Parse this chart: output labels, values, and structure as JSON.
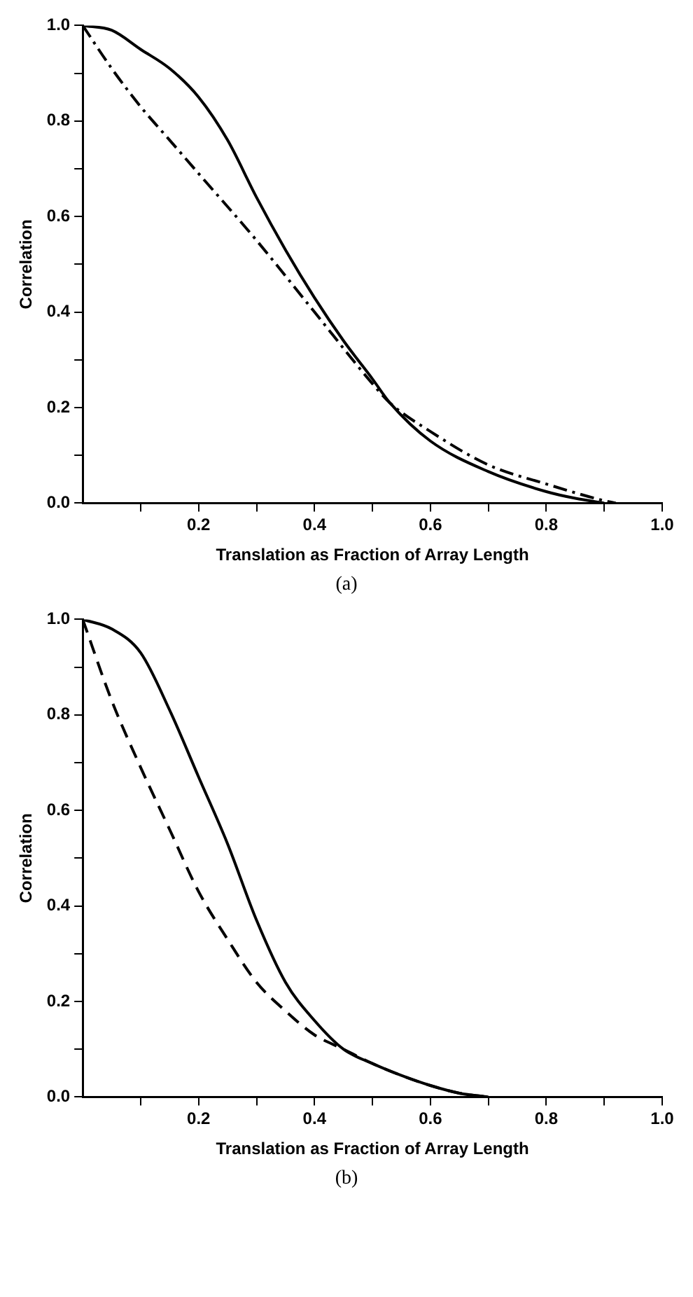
{
  "chart_data": [
    {
      "type": "line",
      "xlabel": "Translation as Fraction of Array Length",
      "ylabel": "Correlation",
      "annotations": [
        "(a)"
      ],
      "marker": "none",
      "legend": false,
      "grid": false,
      "xlim": [
        0,
        1.0
      ],
      "ylim": [
        0,
        1.0
      ],
      "xticks": [
        {
          "value": 0.1,
          "label": null
        },
        0.2,
        {
          "value": 0.3,
          "label": null
        },
        0.4,
        {
          "value": 0.5,
          "label": null
        },
        0.6,
        {
          "value": 0.7,
          "label": null
        },
        0.8,
        {
          "value": 0.9,
          "label": null
        },
        {
          "value": 1.0,
          "label": "1.0"
        }
      ],
      "yticks": [
        {
          "value": 0,
          "label": "0.0"
        },
        {
          "value": 0.1,
          "label": null
        },
        0.2,
        {
          "value": 0.3,
          "label": null
        },
        0.4,
        {
          "value": 0.5,
          "label": null
        },
        0.6,
        {
          "value": 0.7,
          "label": null
        },
        0.8,
        {
          "value": 0.9,
          "label": null
        },
        {
          "value": 1.0,
          "label": "1.0"
        }
      ],
      "series": [
        {
          "color": "#000000",
          "line_style": "solid",
          "x": [
            0,
            0.05,
            0.1,
            0.15,
            0.2,
            0.25,
            0.3,
            0.35,
            0.4,
            0.45,
            0.5,
            0.53,
            0.6,
            0.7,
            0.8,
            0.85,
            0.9
          ],
          "values": [
            1.0,
            0.99,
            0.95,
            0.91,
            0.85,
            0.76,
            0.64,
            0.53,
            0.43,
            0.34,
            0.26,
            0.21,
            0.13,
            0.066,
            0.024,
            0.01,
            0.0
          ]
        },
        {
          "color": "#000000",
          "line_style": "dashdot",
          "x": [
            0,
            0.05,
            0.1,
            0.15,
            0.2,
            0.3,
            0.4,
            0.5,
            0.53,
            0.6,
            0.7,
            0.8,
            0.9,
            0.92
          ],
          "values": [
            1.0,
            0.91,
            0.83,
            0.76,
            0.69,
            0.55,
            0.4,
            0.25,
            0.21,
            0.15,
            0.08,
            0.04,
            0.005,
            0.0
          ]
        }
      ]
    },
    {
      "type": "line",
      "xlabel": "Translation as Fraction of Array Length",
      "ylabel": "Correlation",
      "annotations": [
        "(b)"
      ],
      "marker": "none",
      "legend": false,
      "grid": false,
      "xlim": [
        0,
        1.0
      ],
      "ylim": [
        0,
        1.0
      ],
      "xticks": [
        {
          "value": 0.1,
          "label": null
        },
        0.2,
        {
          "value": 0.3,
          "label": null
        },
        0.4,
        {
          "value": 0.5,
          "label": null
        },
        0.6,
        {
          "value": 0.7,
          "label": null
        },
        0.8,
        {
          "value": 0.9,
          "label": null
        },
        {
          "value": 1.0,
          "label": "1.0"
        }
      ],
      "yticks": [
        {
          "value": 0,
          "label": "0.0"
        },
        {
          "value": 0.1,
          "label": null
        },
        0.2,
        {
          "value": 0.3,
          "label": null
        },
        0.4,
        {
          "value": 0.5,
          "label": null
        },
        0.6,
        {
          "value": 0.7,
          "label": null
        },
        0.8,
        {
          "value": 0.9,
          "label": null
        },
        {
          "value": 1.0,
          "label": "1.0"
        }
      ],
      "series": [
        {
          "color": "#000000",
          "line_style": "solid",
          "x": [
            0,
            0.05,
            0.1,
            0.15,
            0.2,
            0.25,
            0.3,
            0.35,
            0.4,
            0.45,
            0.5,
            0.55,
            0.6,
            0.65,
            0.7
          ],
          "values": [
            1.0,
            0.98,
            0.93,
            0.81,
            0.67,
            0.53,
            0.37,
            0.24,
            0.16,
            0.1,
            0.07,
            0.045,
            0.024,
            0.008,
            0.0
          ]
        },
        {
          "color": "#000000",
          "line_style": "dashed",
          "x": [
            0,
            0.05,
            0.1,
            0.15,
            0.2,
            0.25,
            0.3,
            0.35,
            0.4,
            0.45,
            0.5,
            0.55,
            0.6,
            0.65,
            0.7
          ],
          "values": [
            1.0,
            0.83,
            0.69,
            0.56,
            0.43,
            0.33,
            0.24,
            0.18,
            0.13,
            0.1,
            0.07,
            0.045,
            0.024,
            0.008,
            0.0
          ]
        }
      ]
    }
  ]
}
